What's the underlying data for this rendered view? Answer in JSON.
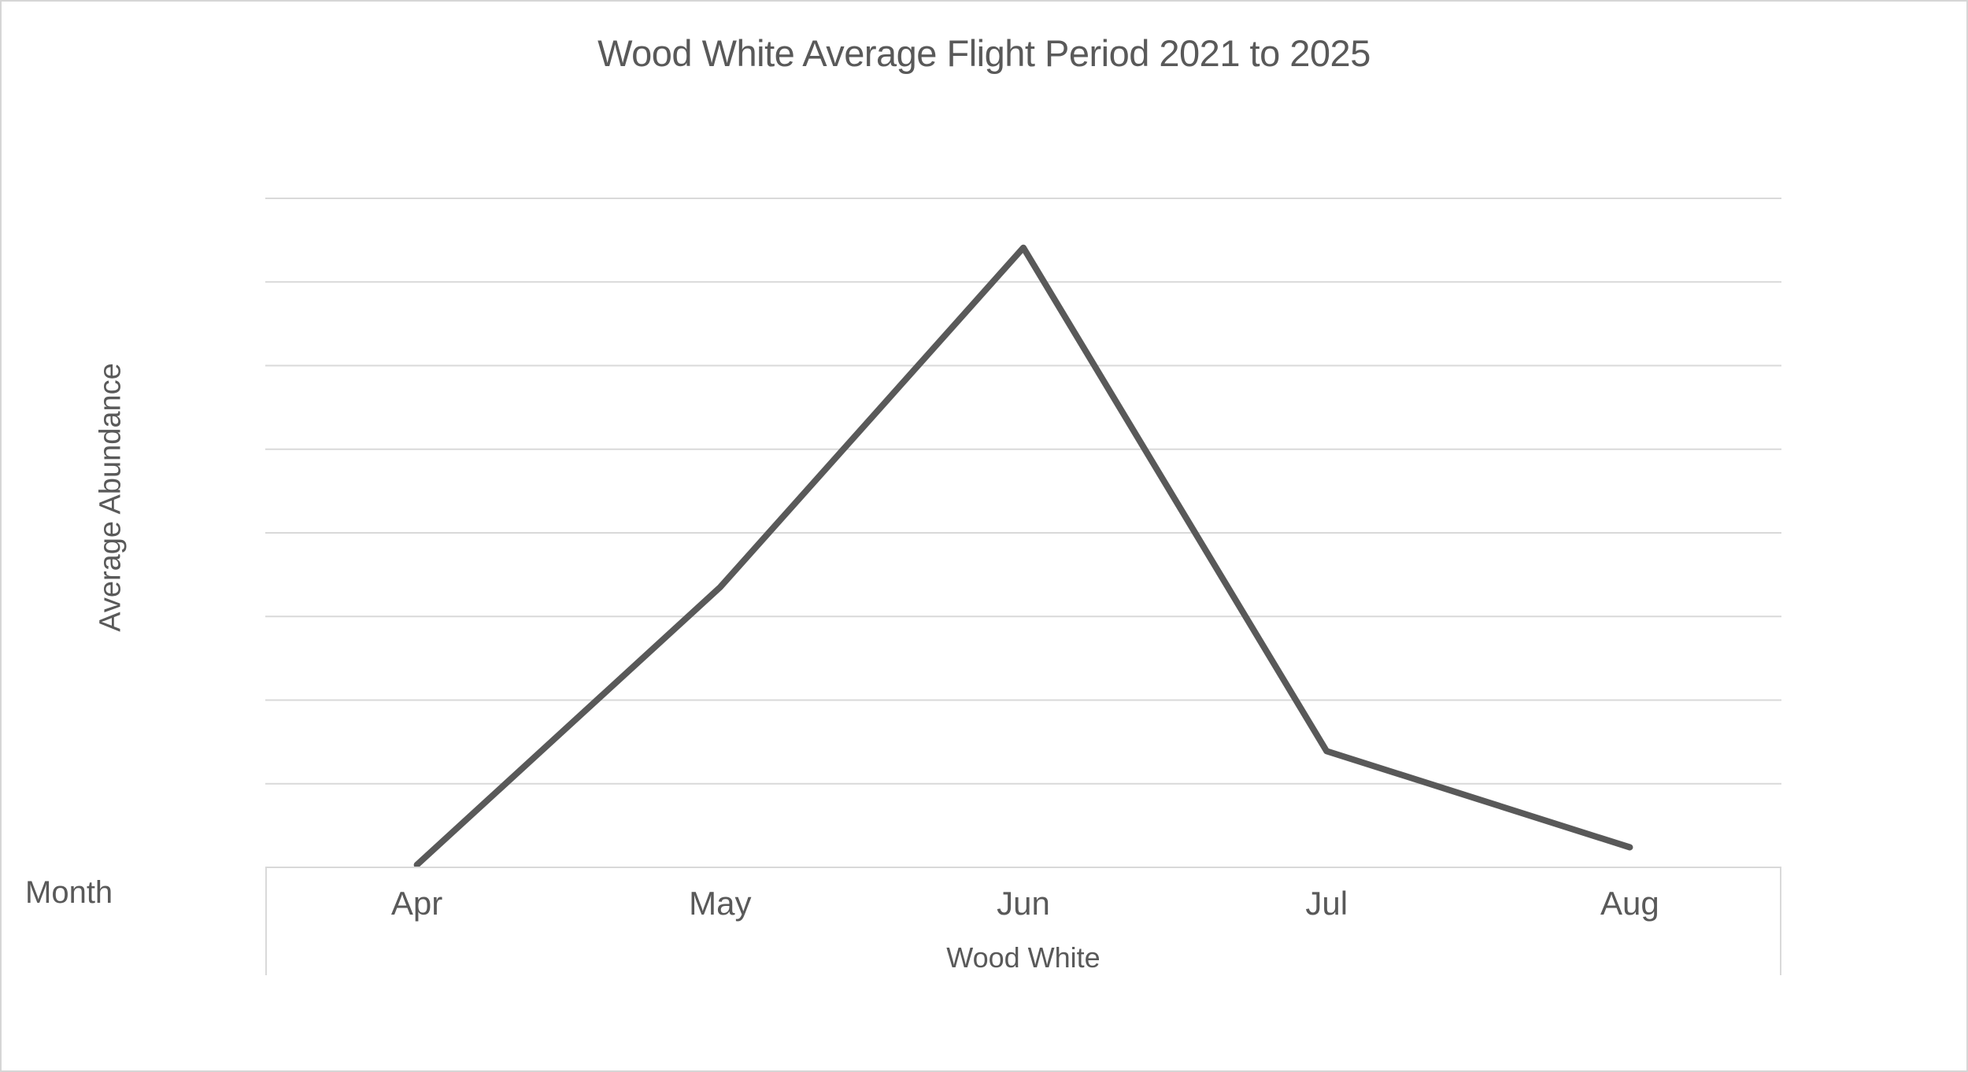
{
  "chart_data": {
    "type": "line",
    "title": "Wood White Average Flight Period 2021 to 2025",
    "ylabel": "Average Abundance",
    "xlabel": "Month",
    "categories": [
      "Apr",
      "May",
      "Jun",
      "Jul",
      "Aug"
    ],
    "series": [
      {
        "name": "Wood White",
        "values": [
          0.03,
          3.35,
          7.41,
          1.39,
          0.24
        ]
      }
    ],
    "ylim": [
      0,
      8
    ],
    "y_gridline_step": 1,
    "y_tick_labels_visible": false,
    "grid": true,
    "legend": "none"
  },
  "colors": {
    "line": "#595959",
    "grid": "#d9d9d9",
    "axis_box": "#d9d9d9",
    "text": "#595959",
    "background": "#ffffff"
  }
}
